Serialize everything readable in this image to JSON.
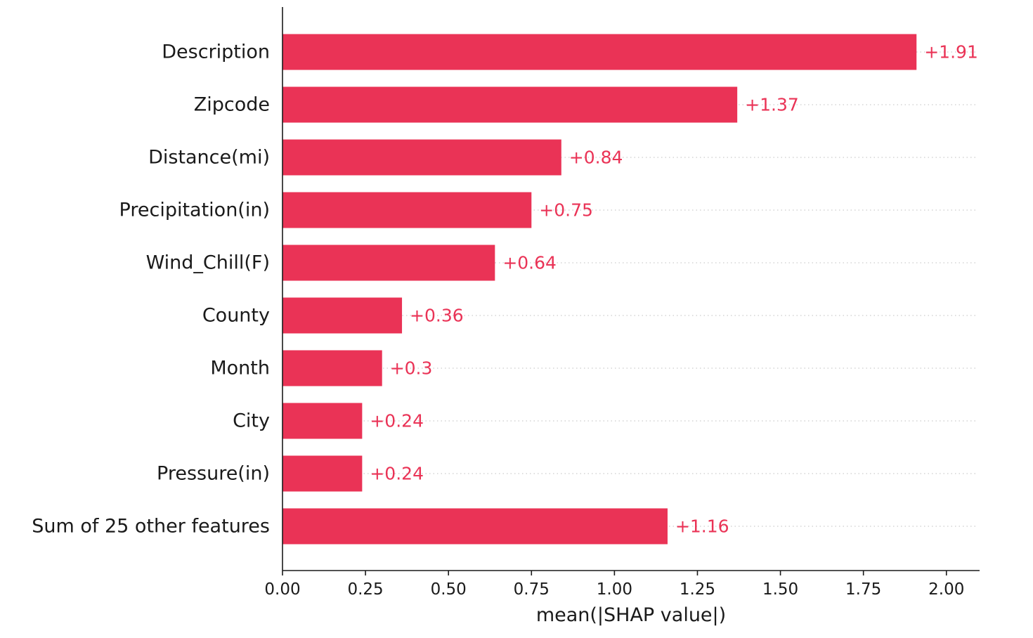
{
  "chart_data": {
    "type": "bar",
    "orientation": "horizontal",
    "categories": [
      "Description",
      "Zipcode",
      "Distance(mi)",
      "Precipitation(in)",
      "Wind_Chill(F)",
      "County",
      "Month",
      "City",
      "Pressure(in)",
      "Sum of 25 other features"
    ],
    "values": [
      1.91,
      1.37,
      0.84,
      0.75,
      0.64,
      0.36,
      0.3,
      0.24,
      0.24,
      1.16
    ],
    "data_labels": [
      "+1.91",
      "+1.37",
      "+0.84",
      "+0.75",
      "+0.64",
      "+0.36",
      "+0.3",
      "+0.24",
      "+0.24",
      "+1.16"
    ],
    "xlabel": "mean(|SHAP value|)",
    "xlim": [
      0,
      2.1
    ],
    "xticks": [
      0.0,
      0.25,
      0.5,
      0.75,
      1.0,
      1.25,
      1.5,
      1.75,
      2.0
    ],
    "xtick_labels": [
      "0.00",
      "0.25",
      "0.50",
      "0.75",
      "1.00",
      "1.25",
      "1.50",
      "1.75",
      "2.00"
    ],
    "grid": "dotted row guides",
    "colors": {
      "bar": "#ea3356",
      "label": "#ea3356",
      "axis": "#1a1a1a",
      "guide": "#cccccc"
    }
  }
}
